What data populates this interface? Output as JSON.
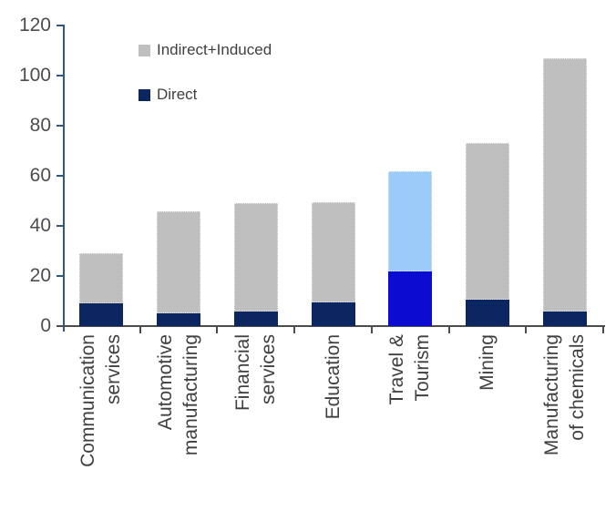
{
  "chart_data": {
    "type": "bar",
    "stacked": true,
    "title": "",
    "xlabel": "",
    "ylabel": "",
    "ylim": [
      0,
      120
    ],
    "y_ticks": [
      0,
      20,
      40,
      60,
      80,
      100,
      120
    ],
    "grid": false,
    "legend_position": "top-left-inside",
    "categories": [
      {
        "id": "communication-services",
        "lines": [
          "Communication",
          "services"
        ]
      },
      {
        "id": "automotive-manufacturing",
        "lines": [
          "Automotive",
          "manufacturing"
        ]
      },
      {
        "id": "financial-services",
        "lines": [
          "Financial",
          "services"
        ]
      },
      {
        "id": "education",
        "lines": [
          "Education"
        ]
      },
      {
        "id": "travel-tourism",
        "lines": [
          "Travel &",
          "Tourism"
        ]
      },
      {
        "id": "mining",
        "lines": [
          "Mining"
        ]
      },
      {
        "id": "manufacturing-of-chemicals",
        "lines": [
          "Manufacturing",
          "of chemicals"
        ]
      }
    ],
    "series": [
      {
        "name": "Direct",
        "values": [
          9,
          5,
          6,
          9.5,
          22,
          10.5,
          6
        ],
        "color": "#0B2661",
        "highlight_color": "#0B0BD2"
      },
      {
        "name": "Indirect+Induced",
        "values": [
          20,
          41,
          43,
          40,
          40,
          62.5,
          101
        ],
        "color": "#BFBFBF",
        "highlight_color": "#9BCBF8"
      }
    ],
    "totals": [
      29,
      46,
      49,
      49.5,
      62,
      73,
      107
    ],
    "highlight_category_index": 4,
    "legend": [
      {
        "label": "Indirect+Induced",
        "color": "#BFBFBF"
      },
      {
        "label": "Direct",
        "color": "#0B2661"
      }
    ],
    "colors": {
      "y_axis": "#31597D",
      "x_axis": "#4C4C4C",
      "tick_label_text": "#4D4D4D",
      "category_label_text": "#3F3F3F",
      "legend_text": "#404040",
      "background": "#FFFFFF"
    }
  }
}
